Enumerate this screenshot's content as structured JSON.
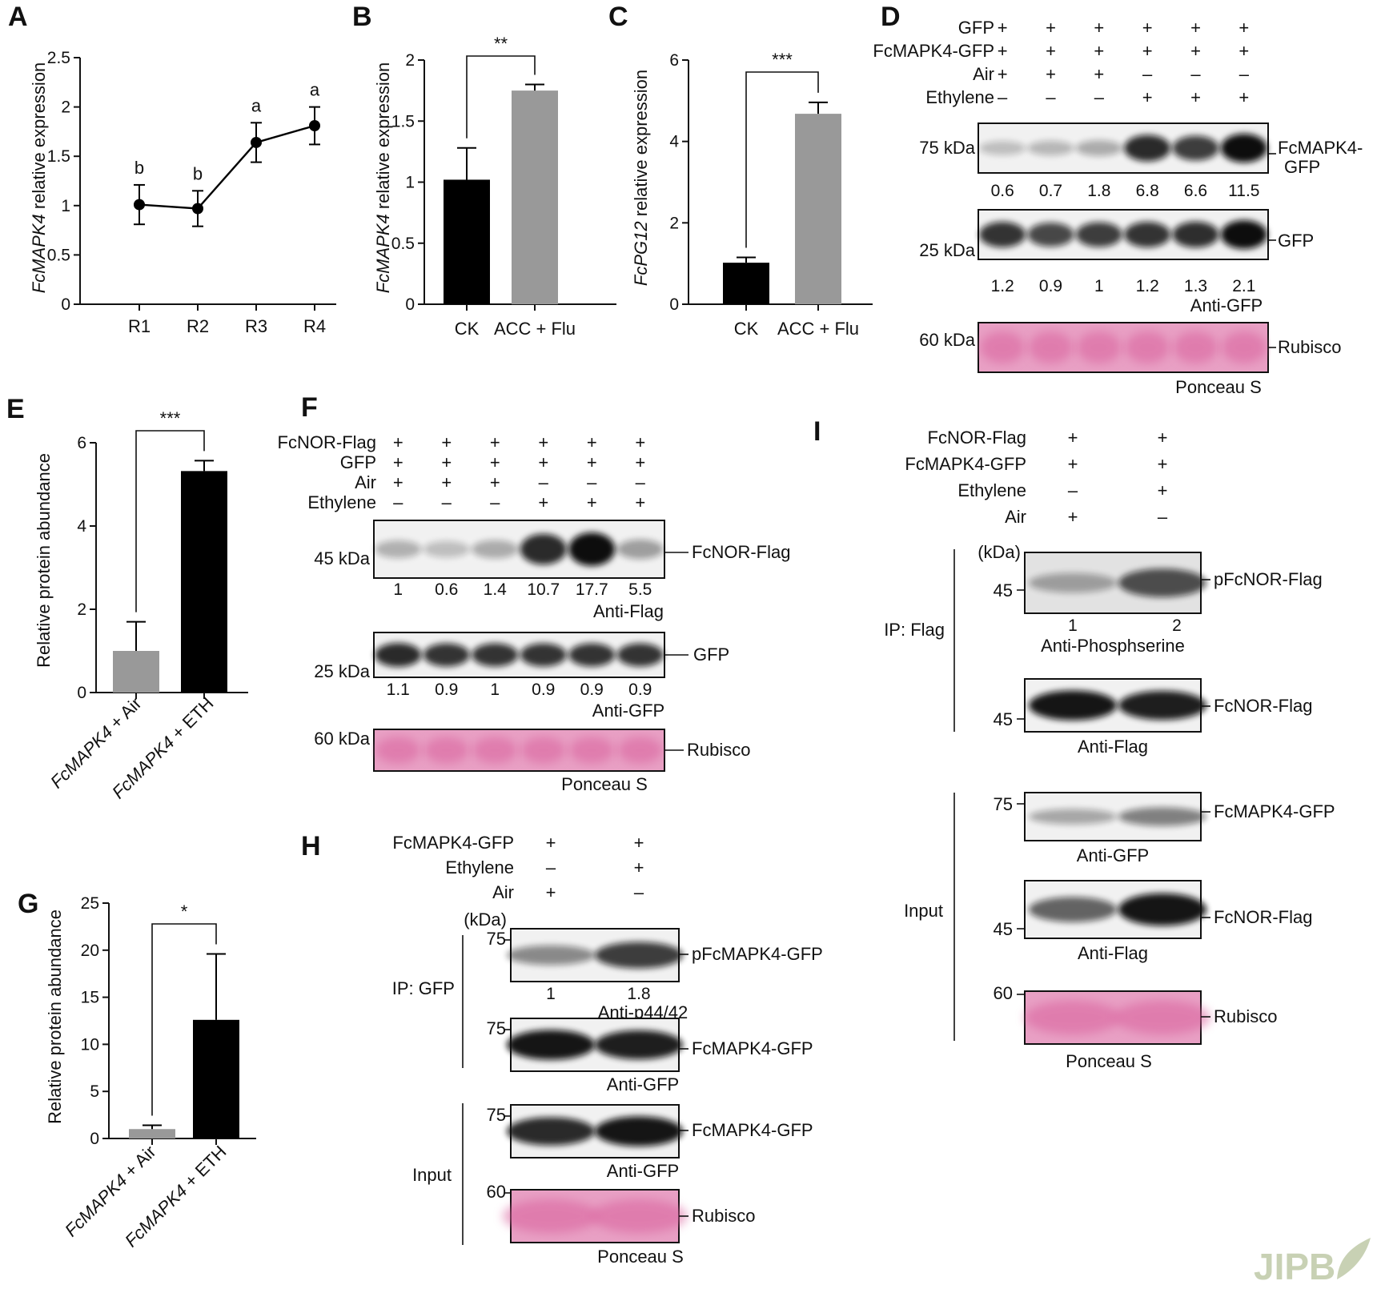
{
  "panels": {
    "A": {
      "label": "A",
      "ylabel_italic": "FcMAPK4",
      "ylabel_rest": " relative expression"
    },
    "B": {
      "label": "B",
      "ylabel_italic": "FcMAPK4",
      "ylabel_rest": " relative expression",
      "sig": "**"
    },
    "C": {
      "label": "C",
      "ylabel_italic": "FcPG12",
      "ylabel_rest": " relative expression",
      "sig": "***"
    },
    "D": {
      "label": "D"
    },
    "E": {
      "label": "E",
      "ylabel": "Relative protein abundance",
      "sig": "***",
      "cat1_italic": "FcMAPK4",
      "cat1_rest": " + Air",
      "cat2_italic": "FcMAPK4",
      "cat2_rest": " + ETH"
    },
    "F": {
      "label": "F"
    },
    "G": {
      "label": "G",
      "ylabel": "Relative protein abundance",
      "sig": "*",
      "cat1_italic": "FcMAPK4",
      "cat1_rest": " + Air",
      "cat2_italic": "FcMAPK4",
      "cat2_rest": " + ETH"
    },
    "H": {
      "label": "H"
    },
    "I": {
      "label": "I"
    }
  },
  "chart_data": [
    {
      "id": "A",
      "type": "line",
      "categories": [
        "R1",
        "R2",
        "R3",
        "R4"
      ],
      "values": [
        1.01,
        0.97,
        1.64,
        1.81
      ],
      "errors": [
        0.2,
        0.18,
        0.2,
        0.19
      ],
      "letters": [
        "b",
        "b",
        "a",
        "a"
      ],
      "ylim": [
        0,
        2.5
      ],
      "yticks": [
        "0",
        "0.5",
        "1",
        "1.5",
        "2",
        "2.5"
      ],
      "color": "#000000"
    },
    {
      "id": "B",
      "type": "bar",
      "categories": [
        "CK",
        "ACC + Flu"
      ],
      "values": [
        1.02,
        1.75
      ],
      "errors": [
        0.26,
        0.05
      ],
      "colors": [
        "#000000",
        "#999999"
      ],
      "ylim": [
        0,
        2
      ],
      "yticks": [
        "0",
        "0.5",
        "1",
        "1.5",
        "2"
      ]
    },
    {
      "id": "C",
      "type": "bar",
      "categories": [
        "CK",
        "ACC + Flu"
      ],
      "values": [
        1.02,
        4.68
      ],
      "errors": [
        0.13,
        0.28
      ],
      "colors": [
        "#000000",
        "#999999"
      ],
      "ylim": [
        0,
        6
      ],
      "yticks": [
        "0",
        "2",
        "4",
        "6"
      ]
    },
    {
      "id": "E",
      "type": "bar",
      "values": [
        1.0,
        5.32
      ],
      "errors": [
        0.7,
        0.25
      ],
      "colors": [
        "#999999",
        "#000000"
      ],
      "ylim": [
        0,
        6
      ],
      "yticks": [
        "0",
        "2",
        "4",
        "6"
      ]
    },
    {
      "id": "G",
      "type": "bar",
      "values": [
        1.0,
        12.6
      ],
      "errors": [
        0.4,
        7.0
      ],
      "colors": [
        "#999999",
        "#000000"
      ],
      "ylim": [
        0,
        25
      ],
      "yticks": [
        "0",
        "5",
        "10",
        "15",
        "20",
        "25"
      ]
    }
  ],
  "blots": {
    "D": {
      "conditions": [
        {
          "name": "GFP",
          "signs": [
            "+",
            "+",
            "+",
            "+",
            "+",
            "+"
          ]
        },
        {
          "name": "FcMAPK4-GFP",
          "signs": [
            "+",
            "+",
            "+",
            "+",
            "+",
            "+"
          ]
        },
        {
          "name": "Air",
          "signs": [
            "+",
            "+",
            "+",
            "–",
            "–",
            "–"
          ]
        },
        {
          "name": "Ethylene",
          "signs": [
            "–",
            "–",
            "–",
            "+",
            "+",
            "+"
          ]
        }
      ],
      "rows": [
        {
          "kda": "75 kDa",
          "band": "FcMAPK4-",
          "band2": "GFP",
          "quant": [
            "0.6",
            "0.7",
            "1.8",
            "6.8",
            "6.6",
            "11.5"
          ],
          "intensity": [
            0.08,
            0.12,
            0.18,
            0.85,
            0.75,
            1.0
          ]
        },
        {
          "kda": "25 kDa",
          "band": "GFP",
          "quant": [
            "1.2",
            "0.9",
            "1",
            "1.2",
            "1.3",
            "2.1"
          ],
          "caption": "Anti-GFP",
          "intensity": [
            0.8,
            0.7,
            0.75,
            0.8,
            0.82,
            1.0
          ]
        },
        {
          "kda": "60 kDa",
          "band": "Rubisco",
          "caption": "Ponceau S"
        }
      ]
    },
    "F": {
      "conditions": [
        {
          "name": "FcNOR-Flag",
          "signs": [
            "+",
            "+",
            "+",
            "+",
            "+",
            "+"
          ]
        },
        {
          "name": "GFP",
          "signs": [
            "+",
            "+",
            "+",
            "+",
            "+",
            "+"
          ]
        },
        {
          "name": "Air",
          "signs": [
            "+",
            "+",
            "+",
            "–",
            "–",
            "–"
          ]
        },
        {
          "name": "Ethylene",
          "signs": [
            "–",
            "–",
            "–",
            "+",
            "+",
            "+"
          ]
        }
      ],
      "rows": [
        {
          "kda": "45 kDa",
          "band": "FcNOR-Flag",
          "quant": [
            "1",
            "0.6",
            "1.4",
            "10.7",
            "17.7",
            "5.5"
          ],
          "caption": "Anti-Flag",
          "intensity": [
            0.15,
            0.08,
            0.18,
            0.85,
            1.0,
            0.25
          ]
        },
        {
          "kda": "25 kDa",
          "band": "GFP",
          "quant": [
            "1.1",
            "0.9",
            "1",
            "0.9",
            "0.9",
            "0.9"
          ],
          "caption": "Anti-GFP",
          "intensity": [
            0.85,
            0.8,
            0.8,
            0.8,
            0.8,
            0.8
          ]
        },
        {
          "kda": "60 kDa",
          "band": "Rubisco",
          "caption": "Ponceau S"
        }
      ]
    },
    "H": {
      "conditions": [
        {
          "name": "FcMAPK4-GFP",
          "signs": [
            "+",
            "+"
          ]
        },
        {
          "name": "Ethylene",
          "signs": [
            "–",
            "+"
          ]
        },
        {
          "name": "Air",
          "signs": [
            "+",
            "–"
          ]
        }
      ],
      "kda_unit": "(kDa)",
      "ip_label": "IP: GFP",
      "input_label": "Input",
      "rows": [
        {
          "kda": "75",
          "band": "pFcMAPK4-GFP",
          "quant": [
            "1",
            "1.8"
          ],
          "caption": "Anti-p44/42"
        },
        {
          "kda": "75",
          "band": "FcMAPK4-GFP",
          "caption": "Anti-GFP"
        },
        {
          "kda": "75",
          "band": "FcMAPK4-GFP",
          "caption": "Anti-GFP"
        },
        {
          "kda": "60",
          "band": "Rubisco",
          "caption": "Ponceau S"
        }
      ]
    },
    "I": {
      "conditions": [
        {
          "name": "FcNOR-Flag",
          "signs": [
            "+",
            "+"
          ]
        },
        {
          "name": "FcMAPK4-GFP",
          "signs": [
            "+",
            "+"
          ]
        },
        {
          "name": "Ethylene",
          "signs": [
            "–",
            "+"
          ]
        },
        {
          "name": "Air",
          "signs": [
            "+",
            "–"
          ]
        }
      ],
      "kda_unit": "(kDa)",
      "ip_label": "IP: Flag",
      "input_label": "Input",
      "rows": [
        {
          "kda": "45",
          "band": "pFcNOR-Flag",
          "quant": [
            "1",
            "2"
          ],
          "caption": "Anti-Phosphserine"
        },
        {
          "kda": "45",
          "band": "FcNOR-Flag",
          "caption": "Anti-Flag"
        },
        {
          "kda": "75",
          "band": "FcMAPK4-GFP",
          "caption": "Anti-GFP"
        },
        {
          "kda": "45",
          "band": "FcNOR-Flag",
          "caption": "Anti-Flag"
        },
        {
          "kda": "60",
          "band": "Rubisco",
          "caption": "Ponceau S"
        }
      ]
    }
  },
  "watermark": "JIPB",
  "colors": {
    "ponceau": "#e8a0c4",
    "ponceau_dark": "#d9619c",
    "band": "#111111"
  }
}
